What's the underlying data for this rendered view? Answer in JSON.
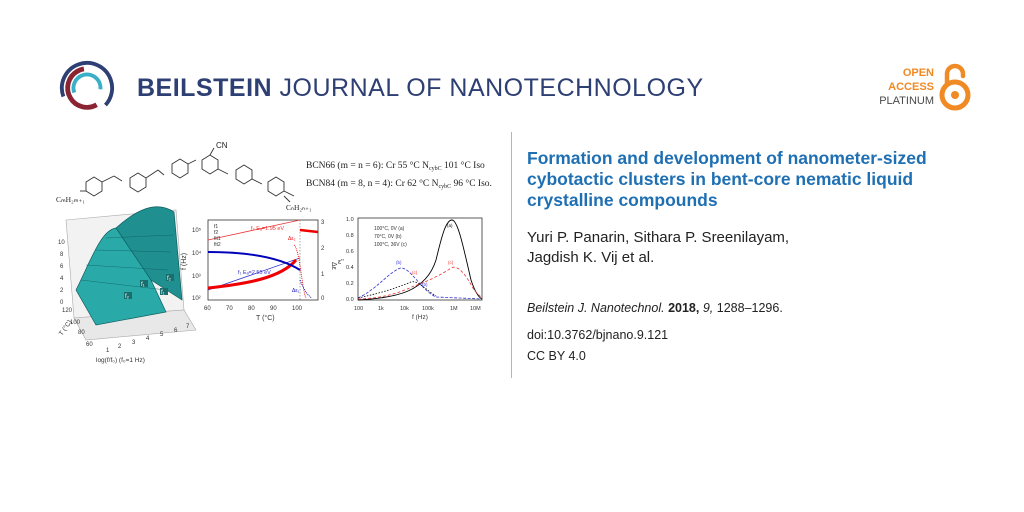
{
  "header": {
    "journal_bold": "BEILSTEIN",
    "journal_rest": "JOURNAL OF NANOTECHNOLOGY",
    "oa_line1": "OPEN",
    "oa_line2": "ACCESS",
    "oa_line3": "PLATINUM",
    "colors": {
      "navy": "#2d3f73",
      "maroon": "#8a2432",
      "teal": "#3ab0c6",
      "orange": "#f08a24"
    }
  },
  "article": {
    "title": "Formation and development of nanometer-sized cybotactic clusters in bent-core nematic liquid crystalline compounds",
    "authors_line1": "Yuri P. Panarin, Sithara P. Sreenilayam,",
    "authors_line2": "Jagdish K. Vij et al.",
    "journal_abbr": "Beilstein J. Nanotechnol.",
    "year": "2018,",
    "volume": "9,",
    "pages": "1288–1296.",
    "doi": "doi:10.3762/bjnano.9.121",
    "license": "CC BY 4.0"
  },
  "graphic": {
    "chem": {
      "cn": "CN",
      "left_chain": "CₘH₂ₘ₊₁",
      "right_chain": "CₙH₂ₙ₊₁",
      "bcn66": "BCN66 (m = n = 6): Cr 55 °C N",
      "bcn66_sub": "cybC",
      "bcn66_end": " 101 °C Iso",
      "bcn84": "BCN84 (m = 8, n = 4): Cr 62 °C N",
      "bcn84_sub": "cybC",
      "bcn84_end": " 96 °C Iso."
    },
    "plot3d": {
      "z_ticks": [
        "10",
        "8",
        "6",
        "4",
        "2",
        "0"
      ],
      "t_ticks": [
        "60",
        "80",
        "100",
        "120"
      ],
      "f_ticks": [
        "1",
        "2",
        "3",
        "4",
        "5",
        "6",
        "7"
      ],
      "t_label": "T (°C)",
      "f_label": "log(f/f₀) (f₀=1 Hz)",
      "peak_labels": [
        "f₂",
        "f₁",
        "f₁",
        "f₂"
      ]
    },
    "plot_mid": {
      "y_ticks": [
        "10⁵",
        "10⁴",
        "10³",
        "10²"
      ],
      "y_label": "f (Hz)",
      "x_ticks": [
        "60",
        "70",
        "80",
        "90",
        "100"
      ],
      "x_label": "T (°C)",
      "y2_ticks": [
        "3",
        "2",
        "1",
        "0"
      ],
      "y2_label": "Δε",
      "legend": [
        "f1",
        "f2",
        "fit1",
        "fit2"
      ],
      "ea1": "f₂  Eₐ=1.95 eV",
      "ea2": "f₁  Eₐ=2.55 eV",
      "de1": "Δε₂",
      "de2": "Δε₁"
    },
    "plot_right": {
      "y_ticks": [
        "1.0",
        "0.8",
        "0.6",
        "0.4",
        "0.2",
        "0.0"
      ],
      "y_label": "ε''",
      "x_ticks": [
        "100",
        "1k",
        "10k",
        "100k",
        "1M",
        "10M"
      ],
      "x_label": "f (Hz)",
      "legend": [
        "100°C, 0V (a)",
        "70°C, 0V (b)",
        "100°C, 36V (c)"
      ],
      "curve_labels": [
        "(a)",
        "(b)",
        "(c)",
        "(b)",
        "(c)"
      ]
    }
  }
}
